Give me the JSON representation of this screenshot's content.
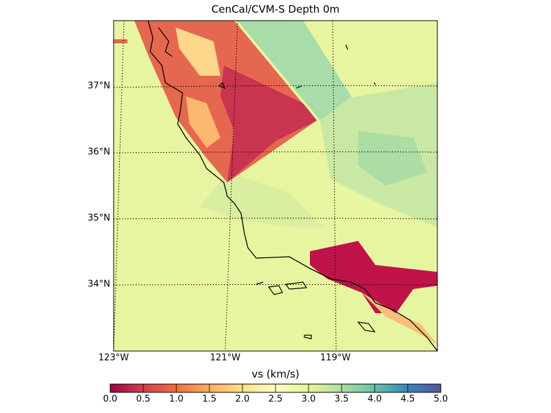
{
  "title": "CenCal/CVM-S Depth 0m",
  "latitude_labels": [
    "37°N",
    "36°N",
    "35°N",
    "34°N"
  ],
  "longitude_labels": [
    "123°W",
    "121°W",
    "119°W"
  ],
  "colorbar": {
    "label": "vs (km/s)",
    "range": [
      0,
      5
    ],
    "colors": [
      "#9e0142",
      "#d53e4f",
      "#f46d43",
      "#fdae61",
      "#fee08b",
      "#ffffbf",
      "#e6f598",
      "#abdda4",
      "#66c2a5",
      "#3288bd",
      "#5e4fa2"
    ],
    "ticks": [
      {
        "value": 0,
        "label": "0.0"
      },
      {
        "value": 0.5,
        "label": "0.5"
      },
      {
        "value": 1,
        "label": "1.0"
      },
      {
        "value": 1.5,
        "label": "1.5"
      },
      {
        "value": 2,
        "label": "2.0"
      },
      {
        "value": 2.5,
        "label": "2.5"
      },
      {
        "value": 3,
        "label": "3.0"
      },
      {
        "value": 3.5,
        "label": "3.5"
      },
      {
        "value": 4,
        "label": "4.0"
      },
      {
        "value": 4.5,
        "label": "4.5"
      },
      {
        "value": 5,
        "label": "5.0"
      }
    ]
  }
}
